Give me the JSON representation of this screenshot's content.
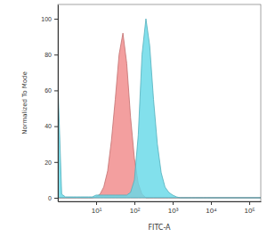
{
  "chart_data": {
    "type": "area",
    "x_label": "FITC-A",
    "y_label": "Normalized To Mode",
    "log": "x",
    "xlim": [
      1,
      200000
    ],
    "xticks": [
      {
        "value": 10,
        "label": "10¹"
      },
      {
        "value": 100,
        "label": "10²"
      },
      {
        "value": 1000,
        "label": "10³"
      },
      {
        "value": 10000,
        "label": "10⁴"
      },
      {
        "value": 100000,
        "label": "10⁵"
      }
    ],
    "ylim": [
      -2,
      108
    ],
    "yticks": [
      0,
      20,
      40,
      60,
      80,
      100
    ],
    "x": [
      1,
      1.26,
      1.58,
      2,
      2.51,
      3.16,
      3.98,
      5.01,
      6.31,
      7.94,
      10,
      12.6,
      15.8,
      20,
      25.1,
      31.6,
      39.8,
      50.1,
      63.1,
      79.4,
      100,
      126,
      158,
      200,
      251,
      316,
      398,
      501,
      631,
      794,
      1000,
      1260,
      1580,
      2000,
      2510,
      3160,
      3980,
      5010,
      6310,
      7940,
      10000,
      100000,
      200000
    ],
    "series": [
      {
        "color": "#f08a8a",
        "values": [
          0,
          0,
          0,
          0,
          0,
          0,
          0,
          0,
          0,
          0,
          0.5,
          2,
          6,
          15,
          32,
          55,
          80,
          92,
          75,
          45,
          22,
          8,
          2,
          0,
          0,
          0,
          0,
          0,
          0,
          0,
          0,
          0,
          0,
          0,
          0,
          0,
          0,
          0,
          0,
          0,
          0,
          0,
          0
        ]
      },
      {
        "color": "#66d9e8",
        "values": [
          65,
          2,
          0.5,
          0.5,
          0.5,
          0.5,
          0.5,
          0.5,
          0.5,
          0.5,
          1.5,
          1.5,
          1.5,
          1.5,
          1.5,
          1.5,
          1.5,
          1.5,
          1.5,
          3,
          10,
          35,
          80,
          100,
          85,
          55,
          30,
          14,
          6,
          3,
          1.5,
          0.5,
          0,
          0,
          0,
          0,
          0,
          0,
          0,
          0,
          0,
          0,
          0
        ]
      }
    ]
  }
}
